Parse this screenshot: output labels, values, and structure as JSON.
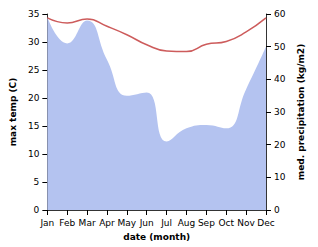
{
  "chart_data": {
    "type": "line",
    "x_label": "date (month)",
    "y_label": "max temp (C)",
    "y2_label": "med. precipitation (kg/m2)",
    "categories": [
      "Jan",
      "Feb",
      "Mar",
      "Apr",
      "May",
      "Jun",
      "Jul",
      "Aug",
      "Sep",
      "Oct",
      "Nov",
      "Dec"
    ],
    "series": [
      {
        "name": "med. precipitation (kg/m2)",
        "type": "area",
        "axis": "y2",
        "color": "#b4c3f0",
        "values": [
          59,
          51,
          58,
          46,
          35,
          36,
          21,
          25,
          26,
          25,
          37,
          50
        ]
      },
      {
        "name": "max temp (C)",
        "type": "line",
        "color": "#cd5c5c",
        "values": [
          34.3,
          33.4,
          34.1,
          32.8,
          31.3,
          29.5,
          28.4,
          28.3,
          29.6,
          30.1,
          31.8,
          34.3
        ]
      }
    ],
    "ylim": [
      0,
      35
    ],
    "yticks": [
      0,
      5,
      10,
      15,
      20,
      25,
      30,
      35
    ],
    "y2lim": [
      0,
      60
    ],
    "y2ticks": [
      0,
      10,
      20,
      30,
      40,
      50,
      60
    ],
    "grid": false
  }
}
